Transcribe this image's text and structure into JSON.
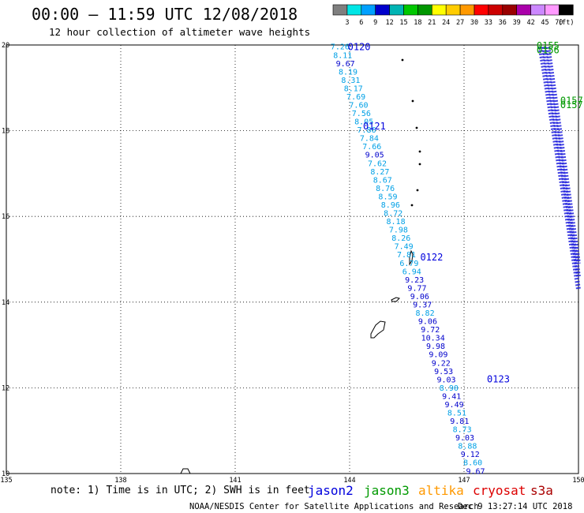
{
  "header": {
    "title": "00:00 — 11:59 UTC 12/08/2018",
    "subtitle": "12 hour collection of altimeter wave heights"
  },
  "legend": {
    "labels": [
      "3",
      "6",
      "9",
      "12",
      "15",
      "18",
      "21",
      "24",
      "27",
      "30",
      "33",
      "36",
      "39",
      "42",
      "45",
      "70"
    ],
    "unit": "(ft)",
    "colors": [
      "#7f7f7f",
      "#00e6e6",
      "#00a0ff",
      "#0000cc",
      "#00b4b4",
      "#00c800",
      "#009600",
      "#ffff00",
      "#ffcc00",
      "#ff9900",
      "#ff0000",
      "#cc0000",
      "#990000",
      "#aa00aa",
      "#cc88ff",
      "#ff99ff",
      "#000000"
    ]
  },
  "footer": {
    "note": "note: 1) Time is in UTC; 2) SWH is in feet",
    "satellites": [
      {
        "name": "jason2",
        "color": "#0000dd"
      },
      {
        "name": "jason3",
        "color": "#009900"
      },
      {
        "name": "altika",
        "color": "#ff9900"
      },
      {
        "name": "cryosat",
        "color": "#dd0000"
      },
      {
        "name": "s3a",
        "color": "#aa0000"
      }
    ],
    "credit": "NOAA/NESDIS Center for Satellite Applications and Research",
    "timestamp": "Dec  9 13:27:14 UTC 2018"
  },
  "chart_data": {
    "type": "scatter",
    "xlim": [
      135,
      150
    ],
    "ylim": [
      10,
      20
    ],
    "xticks": [
      "135",
      "138",
      "141",
      "144",
      "147",
      "150"
    ],
    "yticks": [
      "10",
      "12",
      "14",
      "16",
      "18",
      "20"
    ],
    "grid": true,
    "track_labels": [
      {
        "text": "0120",
        "lon": 144.25,
        "lat": 19.95,
        "color": "#0000dd"
      },
      {
        "text": "0121",
        "lon": 144.65,
        "lat": 18.1,
        "color": "#0000dd"
      },
      {
        "text": "0122",
        "lon": 146.15,
        "lat": 15.05,
        "color": "#0000dd"
      },
      {
        "text": "0123",
        "lon": 147.9,
        "lat": 12.2,
        "color": "#0000dd"
      },
      {
        "text": "0155",
        "lon": 149.2,
        "lat": 19.98,
        "color": "#009900"
      },
      {
        "text": "0156",
        "lon": 149.2,
        "lat": 19.88,
        "color": "#009900"
      },
      {
        "text": "0157",
        "lon": 149.82,
        "lat": 18.7,
        "color": "#009900"
      },
      {
        "text": "0157",
        "lon": 149.82,
        "lat": 18.6,
        "color": "#009900"
      }
    ],
    "jason2_track": {
      "start": [
        143.75,
        19.95
      ],
      "end": [
        147.3,
        10.05
      ],
      "swh": [
        "7.26",
        "8.11",
        "9.67",
        "8.19",
        "8.31",
        "8.17",
        "7.69",
        "7.60",
        "7.56",
        "8.05",
        "7.86",
        "7.84",
        "7.66",
        "9.05",
        "7.62",
        "8.27",
        "8.67",
        "8.76",
        "8.59",
        "8.96",
        "8.72",
        "8.18",
        "7.98",
        "8.26",
        "7.49",
        "7.81",
        "6.79",
        "6.94",
        "9.23",
        "9.77",
        "9.06",
        "9.37",
        "8.82",
        "9.06",
        "9.72",
        "10.34",
        "9.98",
        "9.09",
        "9.22",
        "9.53",
        "9.03",
        "8.90",
        "9.41",
        "9.49",
        "8.51",
        "9.81",
        "8.73",
        "9.03",
        "8.88",
        "9.12",
        "8.60",
        "9.67"
      ],
      "colors": [
        "#00a0e6",
        "#00a0e6",
        "#0000cc",
        "#00a0e6",
        "#00a0e6",
        "#00a0e6",
        "#00a0e6",
        "#00a0e6",
        "#00a0e6",
        "#00a0e6",
        "#00a0e6",
        "#00a0e6",
        "#00a0e6",
        "#0000cc",
        "#00a0e6",
        "#00a0e6",
        "#00a0e6",
        "#00a0e6",
        "#00a0e6",
        "#00a0e6",
        "#00a0e6",
        "#00a0e6",
        "#00a0e6",
        "#00a0e6",
        "#00a0e6",
        "#00a0e6",
        "#00a0e6",
        "#00a0e6",
        "#0000cc",
        "#0000cc",
        "#0000cc",
        "#0000cc",
        "#00a0e6",
        "#0000cc",
        "#0000cc",
        "#0000cc",
        "#0000cc",
        "#0000cc",
        "#0000cc",
        "#0000cc",
        "#0000cc",
        "#00a0e6",
        "#0000cc",
        "#0000cc",
        "#00a0e6",
        "#0000cc",
        "#00a0e6",
        "#0000cc",
        "#00a0e6",
        "#0000cc",
        "#00a0e6",
        "#0000cc"
      ]
    },
    "jason3_tracks": [
      {
        "start": [
          149.0,
          19.95
        ],
        "end": [
          150.0,
          14.3
        ]
      },
      {
        "start": [
          149.1,
          19.95
        ],
        "end": [
          150.0,
          14.6
        ]
      },
      {
        "start": [
          149.2,
          19.95
        ],
        "end": [
          150.0,
          14.9
        ]
      }
    ]
  }
}
